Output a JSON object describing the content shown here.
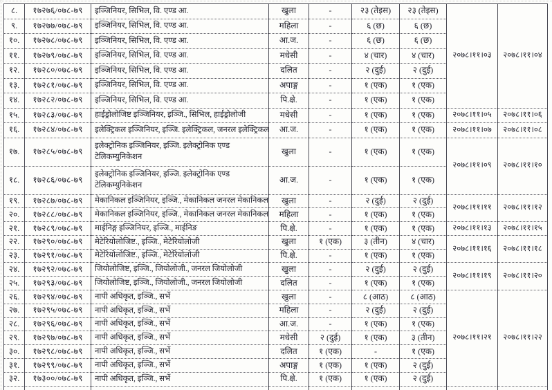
{
  "document": {
    "kind": "scanned-vacancy-table",
    "language": "Nepali",
    "colors": {
      "ink": "#23232e",
      "border": "#4a4a54",
      "background": "#fdfdfb"
    }
  },
  "table": {
    "rows": [
      {
        "sn": "८.",
        "advert_no": "१७२७६/०७८-७९",
        "position": "इञ्जिनियर, सिभिल, वि. एण्ड आ.",
        "category": "खुला",
        "num1": "-",
        "num2": "२३ (तेइस)",
        "total": "२३ (तेइस)",
        "date1": "२०७८।११।०३",
        "date2": "२०७८।११।०४",
        "date_rowspan": 7
      },
      {
        "sn": "९.",
        "advert_no": "१७२७७/०७८-७९",
        "position": "इञ्जिनियर, सिभिल, वि. एण्ड आ.",
        "category": "महिला",
        "num1": "-",
        "num2": "६ (छ)",
        "total": "६ (छ)"
      },
      {
        "sn": "१०.",
        "advert_no": "१७२७८/०७८-७९",
        "position": "इञ्जिनियर, सिभिल, वि. एण्ड आ.",
        "category": "आ.ज.",
        "num1": "-",
        "num2": "६ (छ)",
        "total": "६ (छ)"
      },
      {
        "sn": "११.",
        "advert_no": "१७२७९/०७८-७९",
        "position": "इञ्जिनियर, सिभिल, वि. एण्ड आ.",
        "category": "मधेसी",
        "num1": "-",
        "num2": "४ (चार)",
        "total": "४ (चार)"
      },
      {
        "sn": "१२.",
        "advert_no": "१७२८०/०७८-७९",
        "position": "इञ्जिनियर, सिभिल, वि. एण्ड आ.",
        "category": "दलित",
        "num1": "-",
        "num2": "२ (दुई)",
        "total": "२ (दुई)"
      },
      {
        "sn": "१३.",
        "advert_no": "१७२८१/०७८-७९",
        "position": "इञ्जिनियर, सिभिल, वि. एण्ड आ.",
        "category": "अपाङ्ग",
        "num1": "-",
        "num2": "१ (एक)",
        "total": "१ (एक)"
      },
      {
        "sn": "१४.",
        "advert_no": "१७२८२/०७८-७९",
        "position": "इञ्जिनियर, सिभिल, वि. एण्ड आ.",
        "category": "पि.क्षे.",
        "num1": "-",
        "num2": "१ (एक)",
        "total": "१ (एक)"
      },
      {
        "sn": "१५.",
        "advert_no": "१७२८३/०७८-७९",
        "position": "हाईड्रोलोजिष्ट इञ्जिनियर, इञ्जि., सिभिल, हाईड्रोलोजी",
        "category": "मधेसी",
        "num1": "-",
        "num2": "१ (एक)",
        "total": "१ (एक)",
        "date1": "२०७८।११।०५",
        "date2": "२०७८।११।०६",
        "date_rowspan": 1
      },
      {
        "sn": "१६.",
        "advert_no": "१७२८४/०७८-७९",
        "position": "इलेक्ट्रिकल इञ्जिनियर, इञ्जि. इलेक्ट्रिकल, जनरल इलेक्ट्रिकल",
        "category": "आ.ज.",
        "num1": "-",
        "num2": "१ (एक)",
        "total": "१ (एक)",
        "date1": "२०७८।११।०७",
        "date2": "२०७८।११।०८",
        "date_rowspan": 1
      },
      {
        "sn": "१७.",
        "advert_no": "१७२८५/०७८-७९",
        "position": "इलेक्ट्रोनिक इञ्जिनियर, इञ्जि. इलेक्ट्रोनिक एण्ड टेलिकम्युनिकेशन",
        "category": "खुला",
        "num1": "-",
        "num2": "१ (एक)",
        "total": "१ (एक)",
        "date1": "२०७८।११।०९",
        "date2": "२०७८।११।१०",
        "date_rowspan": 2
      },
      {
        "sn": "१८.",
        "advert_no": "१७२८६/०७८-७९",
        "position": "इलेक्ट्रोनिक इञ्जिनियर, इञ्जि. इलेक्ट्रोनिक एण्ड टेलिकम्युनिकेशन",
        "category": "आ.ज.",
        "num1": "-",
        "num2": "१ (एक)",
        "total": "१ (एक)"
      },
      {
        "sn": "१९.",
        "advert_no": "१७२८७/०७८-७९",
        "position": "मेकानिकल इञ्जिनियर, इञ्जि., मेकानिकल जनरल मेकानिकल",
        "category": "खुला",
        "num1": "-",
        "num2": "२ (दुई)",
        "total": "२ (दुई)",
        "date1": "२०७८।११।११",
        "date2": "२०७८।११।१२",
        "date_rowspan": 2
      },
      {
        "sn": "२०.",
        "advert_no": "१७२८८/०७८-७९",
        "position": "मेकानिकल इञ्जिनियर, इञ्जि., मेकानिकल जनरल मेकानिकल",
        "category": "महिला",
        "num1": "-",
        "num2": "१ (एक)",
        "total": "१ (एक)"
      },
      {
        "sn": "२१.",
        "advert_no": "१७२८९/०७८-७९",
        "position": "माईनिङ्ग इञ्जिनियर, इञ्जि., माईनिङ",
        "category": "पि.क्षे.",
        "num1": "-",
        "num2": "१ (एक)",
        "total": "१ (एक)",
        "date1": "२०७८।११।१३",
        "date2": "२०७८।११।१५",
        "date_rowspan": 1
      },
      {
        "sn": "२२.",
        "advert_no": "१७२९०/०७८-७९",
        "position": "मेटेरियोलोजिष्ट., इञ्जि., मेटेरियोलोजी",
        "category": "खुला",
        "num1": "१ (एक)",
        "num2": "३ (तीन)",
        "total": "४ (चार)",
        "date1": "२०७८।११।१६",
        "date2": "२०७८।११।१८",
        "date_rowspan": 2
      },
      {
        "sn": "२३.",
        "advert_no": "१७२९१/०७८-७९",
        "position": "मेटेरियोलोजिष्ट., इञ्जि., मेटेरियोलोजी",
        "category": "पि.क्षे.",
        "num1": "-",
        "num2": "१ (एक)",
        "total": "१ (एक)"
      },
      {
        "sn": "२४.",
        "advert_no": "१७२९२/०७८-७९",
        "position": "जियोलोजिष्ट, इञ्जि., जियोलोजी., जनरल जियोलोजी",
        "category": "खुला",
        "num1": "-",
        "num2": "२ (दुई)",
        "total": "२ (दुई)",
        "date1": "२०७८।११।१९",
        "date2": "२०७८।११।२०",
        "date_rowspan": 2
      },
      {
        "sn": "२५.",
        "advert_no": "१७२९३/०७८-७९",
        "position": "जियोलोजिष्ट, इञ्जि., जियोलोजी., जनरल जियोलोजी",
        "category": "दलित",
        "num1": "-",
        "num2": "१ (एक)",
        "total": "१ (एक)"
      },
      {
        "sn": "२६.",
        "advert_no": "१७२९४/०७८-७९",
        "position": "नापी अधिकृत, इञ्जि., सर्भे",
        "category": "खुला",
        "num1": "-",
        "num2": "८ (आठ)",
        "total": "८ (आठ)",
        "date1": "२०७८।११।२१",
        "date2": "२०७८।११।२२",
        "date_rowspan": 7
      },
      {
        "sn": "२७.",
        "advert_no": "१७२९५/०७८-७९",
        "position": "नापी अधिकृत, इञ्जि., सर्भे",
        "category": "महिला",
        "num1": "-",
        "num2": "२ (दुई)",
        "total": "२ (दुई)"
      },
      {
        "sn": "२८.",
        "advert_no": "१७२९६/०७८-७९",
        "position": "नापी अधिकृत, इञ्जि., सर्भे",
        "category": "आ.ज.",
        "num1": "-",
        "num2": "१ (एक)",
        "total": "१ (एक)"
      },
      {
        "sn": "२९.",
        "advert_no": "१७२९७/०७८-७९",
        "position": "नापी अधिकृत, इञ्जि., सर्भे",
        "category": "मधेसी",
        "num1": "२ (दुई)",
        "num2": "१ (एक)",
        "total": "३ (तीन)"
      },
      {
        "sn": "३०.",
        "advert_no": "१७२९८/०७८-७९",
        "position": "नापी अधिकृत, इञ्जि., सर्भे",
        "category": "दलित",
        "num1": "१ (एक)",
        "num2": "-",
        "total": "१ (एक)"
      },
      {
        "sn": "३१.",
        "advert_no": "१७२९९/०७८-७९",
        "position": "नापी अधिकृत, इञ्जि., सर्भे",
        "category": "अपाङ्ग",
        "num1": "१ (एक)",
        "num2": "१ (एक)",
        "total": "२ (दुई)"
      },
      {
        "sn": "३२.",
        "advert_no": "१७३००/०७८-७९",
        "position": "नापी अधिकृत, इञ्जि., सर्भे",
        "category": "पि.क्षे.",
        "num1": "१ (एक)",
        "num2": "१ (एक)",
        "total": "२ (दुई)"
      }
    ]
  }
}
